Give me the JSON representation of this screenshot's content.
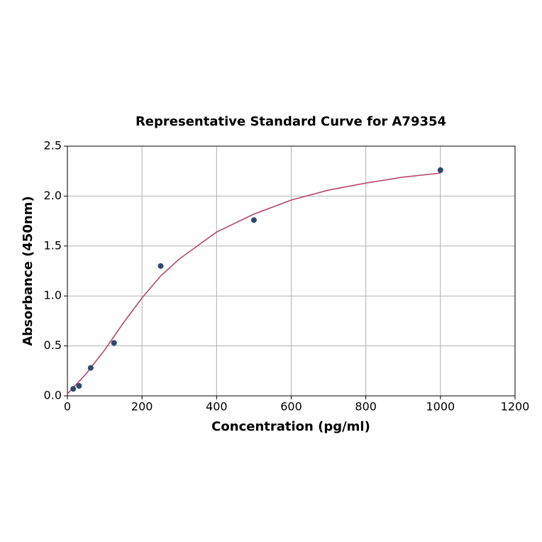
{
  "chart_data": {
    "type": "scatter",
    "title": "Representative Standard Curve for A79354",
    "x_label": "Concentration (pg/ml)",
    "y_label": "Absorbance (450nm)",
    "points": {
      "color": "#2e4a6b",
      "x": [
        15.6,
        31.25,
        62.5,
        125,
        250,
        500,
        1000
      ],
      "values": [
        0.07,
        0.1,
        0.28,
        0.53,
        1.3,
        1.76,
        2.26
      ]
    },
    "fit": {
      "color": "#b5476b",
      "x": [
        0,
        50,
        100,
        150,
        200,
        250,
        300,
        400,
        500,
        600,
        700,
        800,
        900,
        1000
      ],
      "values": [
        0.02,
        0.22,
        0.46,
        0.73,
        0.98,
        1.2,
        1.37,
        1.64,
        1.82,
        1.96,
        2.06,
        2.13,
        2.19,
        2.23
      ]
    },
    "xlim": [
      0,
      1200
    ],
    "xticks": [
      0,
      200,
      400,
      600,
      800,
      1000,
      1200
    ],
    "ylim": [
      0,
      2.5
    ],
    "yticks": [
      {
        "value": 0,
        "label": "0.0"
      },
      0.5,
      {
        "value": 1,
        "label": "1.0"
      },
      1.5,
      {
        "value": 2,
        "label": "2.0"
      },
      2.5
    ],
    "grid": true
  }
}
